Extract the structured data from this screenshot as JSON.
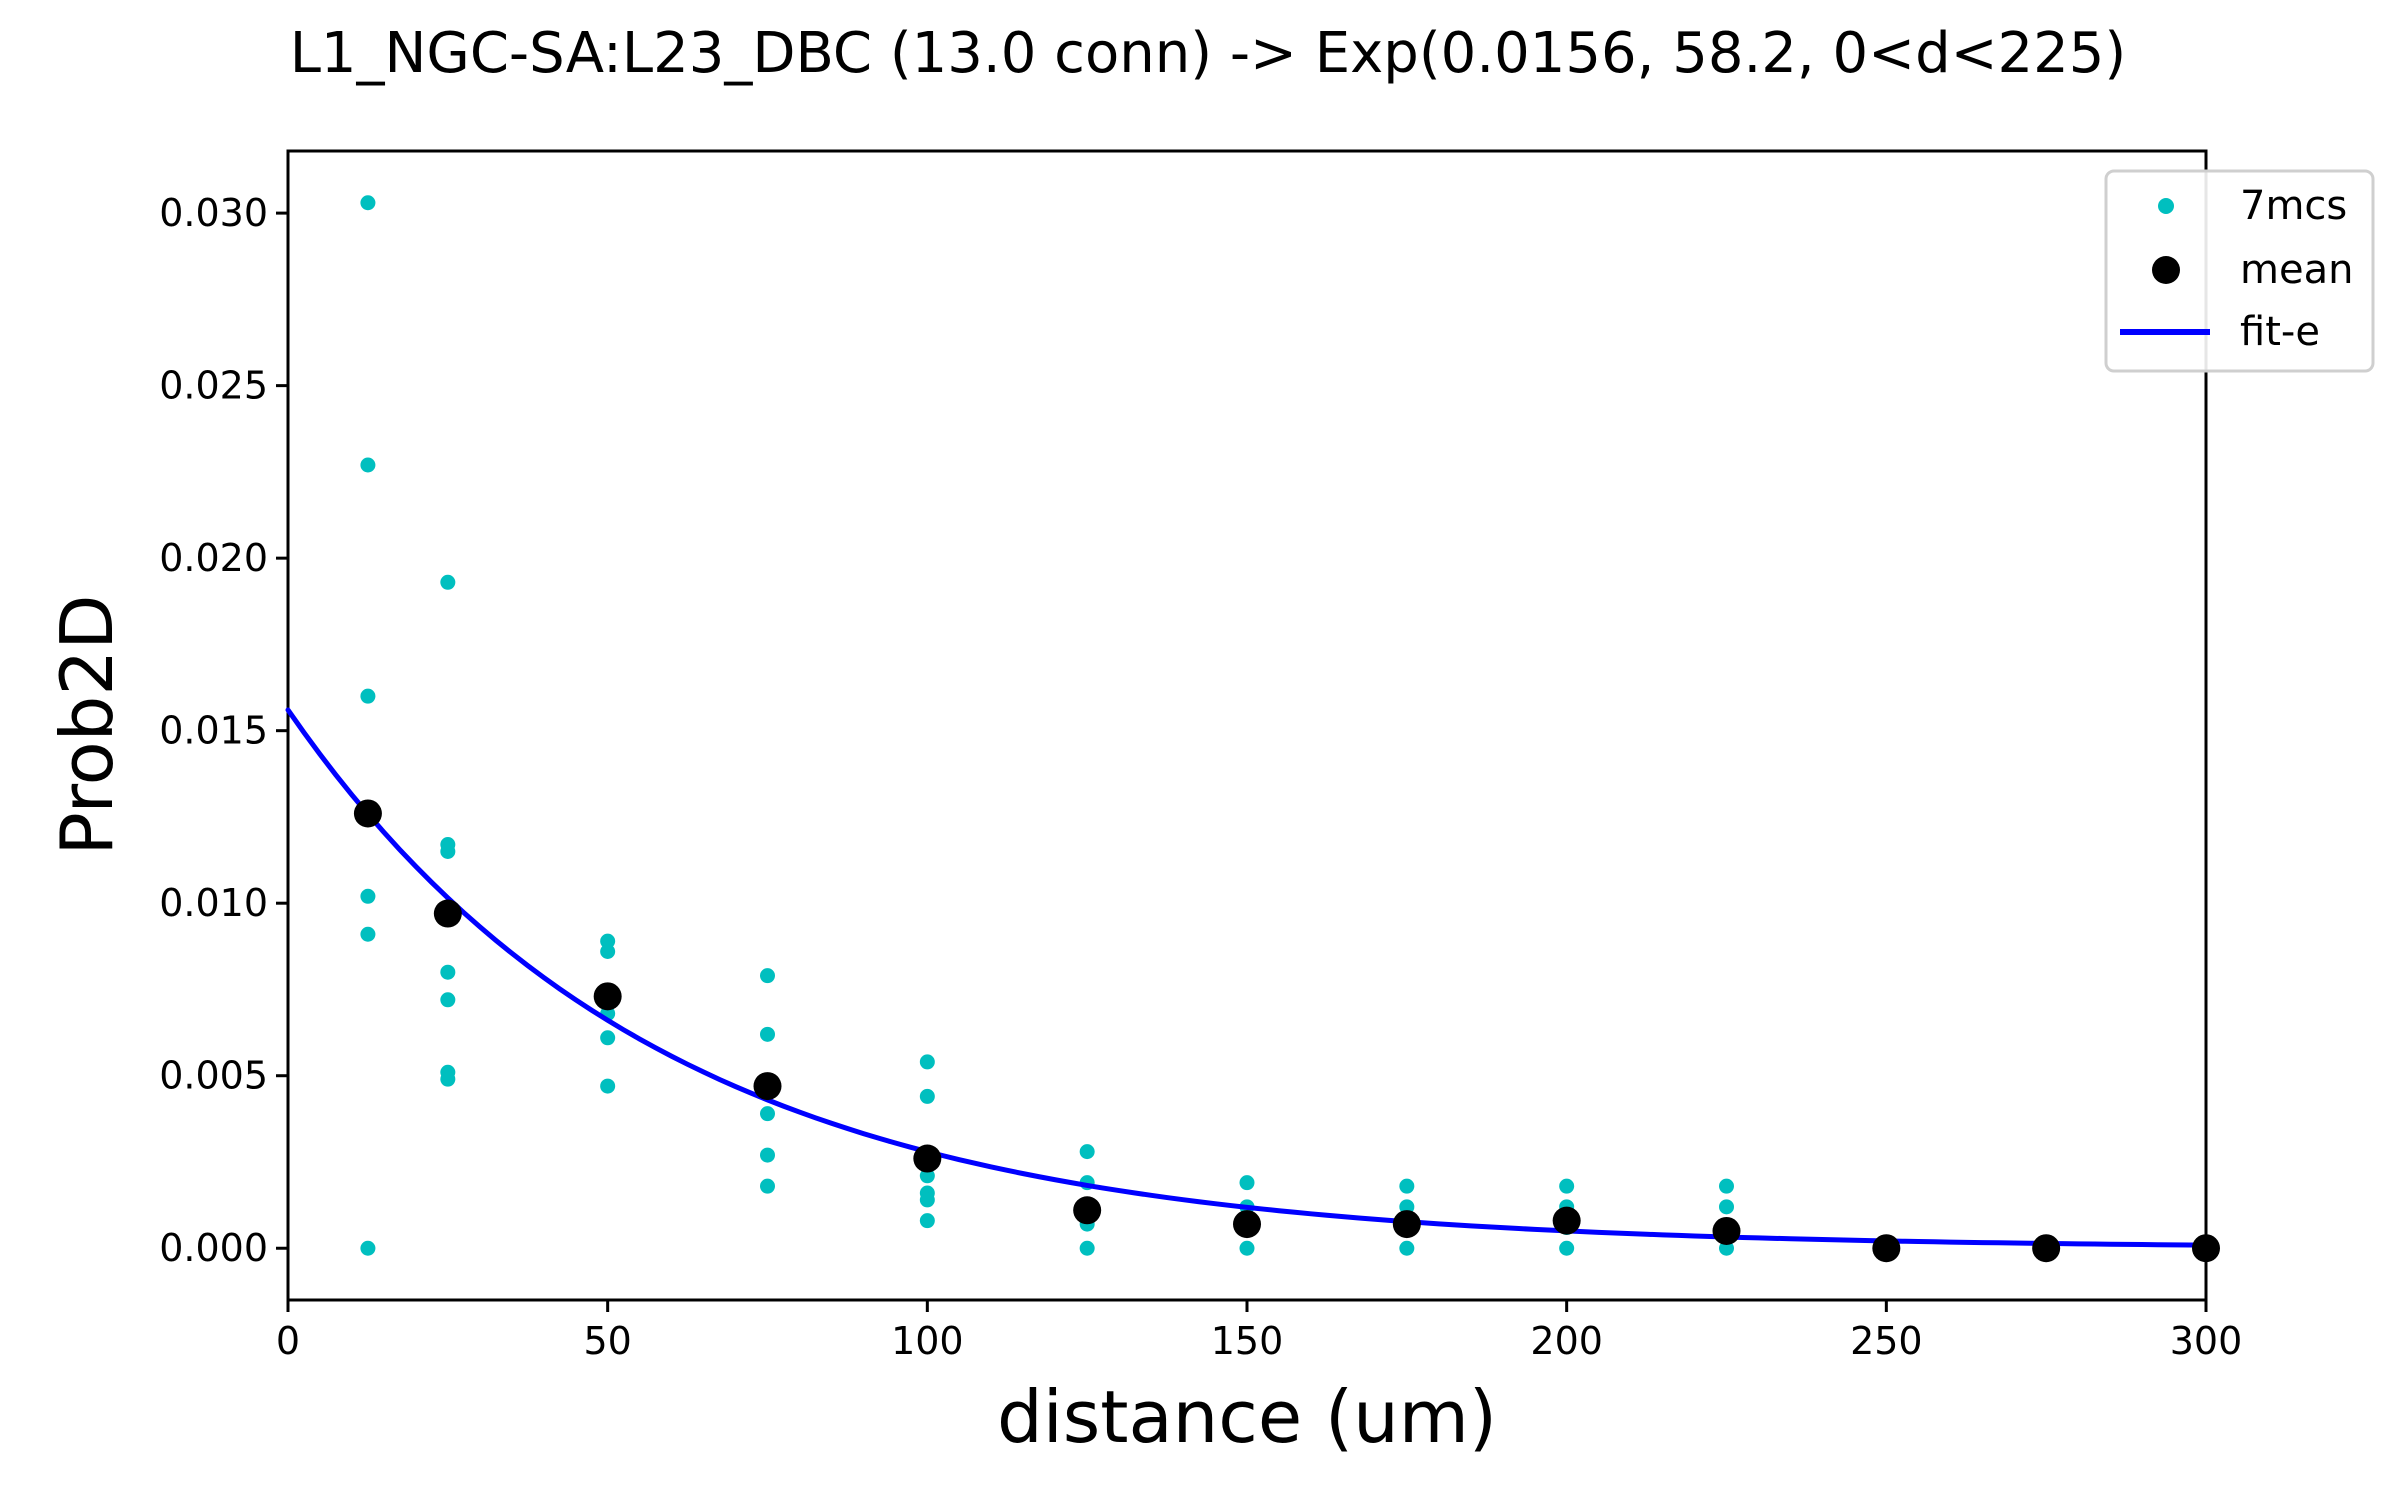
{
  "chart_data": {
    "type": "scatter",
    "title": "L1_NGC-SA:L23_DBC (13.0 conn) -> Exp(0.0156, 58.2, 0<d<225)",
    "xlabel": "distance (um)",
    "ylabel": "Prob2D",
    "xlim": [
      0,
      300
    ],
    "ylim": [
      -0.0015,
      0.0318
    ],
    "xticks": [
      0,
      50,
      100,
      150,
      200,
      250,
      300
    ],
    "xtick_labels": [
      "0",
      "50",
      "100",
      "150",
      "200",
      "250",
      "300"
    ],
    "yticks": [
      0.0,
      0.005,
      0.01,
      0.015,
      0.02,
      0.025,
      0.03
    ],
    "ytick_labels": [
      "0.000",
      "0.005",
      "0.010",
      "0.015",
      "0.020",
      "0.025",
      "0.030"
    ],
    "grid": false,
    "legend": {
      "position": "top-right",
      "entries": [
        "7mcs",
        "mean",
        "fit-e"
      ]
    },
    "colors": {
      "points": "#00bfbf",
      "mean": "#000000",
      "fit": "#0000ff"
    },
    "series": [
      {
        "name": "7mcs",
        "type": "scatter",
        "points": [
          [
            12.5,
            0.0303
          ],
          [
            12.5,
            0.0227
          ],
          [
            12.5,
            0.016
          ],
          [
            12.5,
            0.0126
          ],
          [
            12.5,
            0.0102
          ],
          [
            12.5,
            0.0091
          ],
          [
            12.5,
            0.0
          ],
          [
            25,
            0.0193
          ],
          [
            25,
            0.0117
          ],
          [
            25,
            0.0115
          ],
          [
            25,
            0.008
          ],
          [
            25,
            0.0072
          ],
          [
            25,
            0.0051
          ],
          [
            25,
            0.0049
          ],
          [
            50,
            0.0089
          ],
          [
            50,
            0.0086
          ],
          [
            50,
            0.0074
          ],
          [
            50,
            0.0068
          ],
          [
            50,
            0.0061
          ],
          [
            50,
            0.0047
          ],
          [
            75,
            0.0079
          ],
          [
            75,
            0.0062
          ],
          [
            75,
            0.0047
          ],
          [
            75,
            0.0039
          ],
          [
            75,
            0.0027
          ],
          [
            75,
            0.0018
          ],
          [
            100,
            0.0054
          ],
          [
            100,
            0.0044
          ],
          [
            100,
            0.0026
          ],
          [
            100,
            0.0021
          ],
          [
            100,
            0.0016
          ],
          [
            100,
            0.0014
          ],
          [
            100,
            0.0008
          ],
          [
            125,
            0.0028
          ],
          [
            125,
            0.0019
          ],
          [
            125,
            0.0011
          ],
          [
            125,
            0.0007
          ],
          [
            125,
            0.0
          ],
          [
            150,
            0.0019
          ],
          [
            150,
            0.0012
          ],
          [
            150,
            0.0007
          ],
          [
            150,
            0.0
          ],
          [
            175,
            0.0018
          ],
          [
            175,
            0.0012
          ],
          [
            175,
            0.0006
          ],
          [
            175,
            0.0
          ],
          [
            200,
            0.0018
          ],
          [
            200,
            0.0012
          ],
          [
            200,
            0.0006
          ],
          [
            200,
            0.0
          ],
          [
            225,
            0.0018
          ],
          [
            225,
            0.0012
          ],
          [
            225,
            0.0005
          ],
          [
            225,
            0.0
          ]
        ]
      },
      {
        "name": "mean",
        "type": "scatter",
        "points": [
          [
            12.5,
            0.0126
          ],
          [
            25,
            0.0097
          ],
          [
            50,
            0.0073
          ],
          [
            75,
            0.0047
          ],
          [
            100,
            0.0026
          ],
          [
            125,
            0.0011
          ],
          [
            150,
            0.0007
          ],
          [
            175,
            0.0007
          ],
          [
            200,
            0.0008
          ],
          [
            225,
            0.0005
          ],
          [
            250,
            0.0
          ],
          [
            275,
            0.0
          ],
          [
            300,
            0.0
          ]
        ]
      },
      {
        "name": "fit-e",
        "type": "line",
        "model": "exp",
        "amplitude": 0.0156,
        "length_constant": 58.2,
        "x_range": [
          0,
          300
        ]
      }
    ]
  }
}
